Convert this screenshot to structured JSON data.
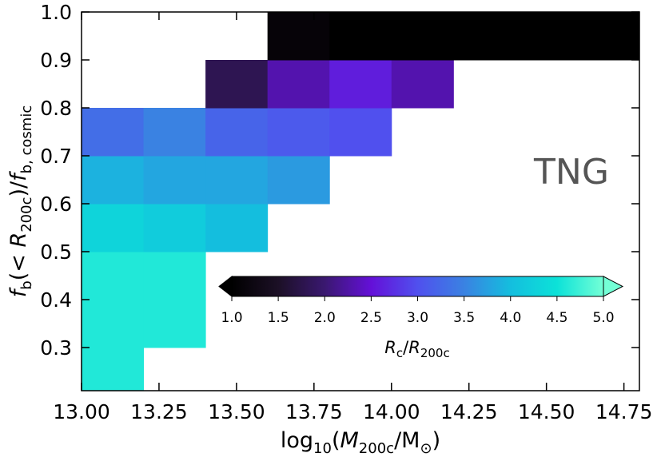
{
  "chart_data": {
    "type": "heatmap",
    "xlabel": [
      "log",
      "10",
      "(",
      "M",
      "200c",
      "/M",
      "⊙",
      ")"
    ],
    "ylabel": [
      "f",
      "b",
      "(< ",
      "R",
      "200c",
      ")/",
      "f",
      "b, cosmic"
    ],
    "annotation": "TNG",
    "xbins": [
      13.0,
      13.2,
      13.4,
      13.6,
      13.8,
      14.0,
      14.2,
      14.4,
      14.6,
      14.8
    ],
    "ybins": [
      0.2,
      0.3,
      0.4,
      0.5,
      0.6,
      0.7,
      0.8,
      0.9,
      1.0
    ],
    "values": [
      [
        4.6,
        null,
        null,
        null,
        null,
        null,
        null,
        null,
        null
      ],
      [
        4.6,
        4.6,
        null,
        null,
        null,
        null,
        null,
        null,
        null
      ],
      [
        4.6,
        4.6,
        null,
        null,
        null,
        null,
        null,
        null,
        null
      ],
      [
        4.3,
        4.2,
        4.0,
        null,
        null,
        null,
        null,
        null,
        null
      ],
      [
        3.9,
        3.8,
        3.8,
        3.7,
        null,
        null,
        null,
        null,
        null
      ],
      [
        3.3,
        3.5,
        3.2,
        3.1,
        3.0,
        null,
        null,
        null,
        null
      ],
      [
        null,
        null,
        1.8,
        2.3,
        2.6,
        2.3,
        null,
        null,
        null
      ],
      [
        null,
        null,
        null,
        1.1,
        1.0,
        1.0,
        1.0,
        1.0,
        1.0
      ]
    ],
    "xlim": [
      13.0,
      14.8
    ],
    "ylim": [
      0.21,
      1.0
    ],
    "xticks": [
      {
        "value": 13.0,
        "label": "13.00"
      },
      {
        "value": 13.25,
        "label": "13.25"
      },
      {
        "value": 13.5,
        "label": "13.50"
      },
      {
        "value": 13.75,
        "label": "13.75"
      },
      {
        "value": 14.0,
        "label": "14.00"
      },
      {
        "value": 14.25,
        "label": "14.25"
      },
      {
        "value": 14.5,
        "label": "14.50"
      },
      {
        "value": 14.75,
        "label": "14.75"
      }
    ],
    "yticks": [
      0.3,
      0.4,
      0.5,
      0.6,
      0.7,
      0.8,
      0.9,
      {
        "value": 1.0,
        "label": "1.0"
      }
    ],
    "colorbar": {
      "label": [
        "R",
        "c",
        "/",
        "R",
        "200c"
      ],
      "clim": [
        1.0,
        5.0
      ],
      "extend": "both",
      "ticks": [
        {
          "value": 1.0,
          "label": "1.0"
        },
        {
          "value": 1.5,
          "label": "1.5"
        },
        {
          "value": 2.0,
          "label": "2.0"
        },
        {
          "value": 2.5,
          "label": "2.5"
        },
        {
          "value": 3.0,
          "label": "3.0"
        },
        {
          "value": 3.5,
          "label": "3.5"
        },
        {
          "value": 4.0,
          "label": "4.0"
        },
        {
          "value": 4.5,
          "label": "4.5"
        },
        {
          "value": 5.0,
          "label": "5.0"
        }
      ],
      "colormap": [
        "#000000",
        "#1c1026",
        "#3a1870",
        "#6410d8",
        "#5050ee",
        "#3a82e2",
        "#14bede",
        "#0ce2d8",
        "#74ffd6"
      ]
    }
  }
}
